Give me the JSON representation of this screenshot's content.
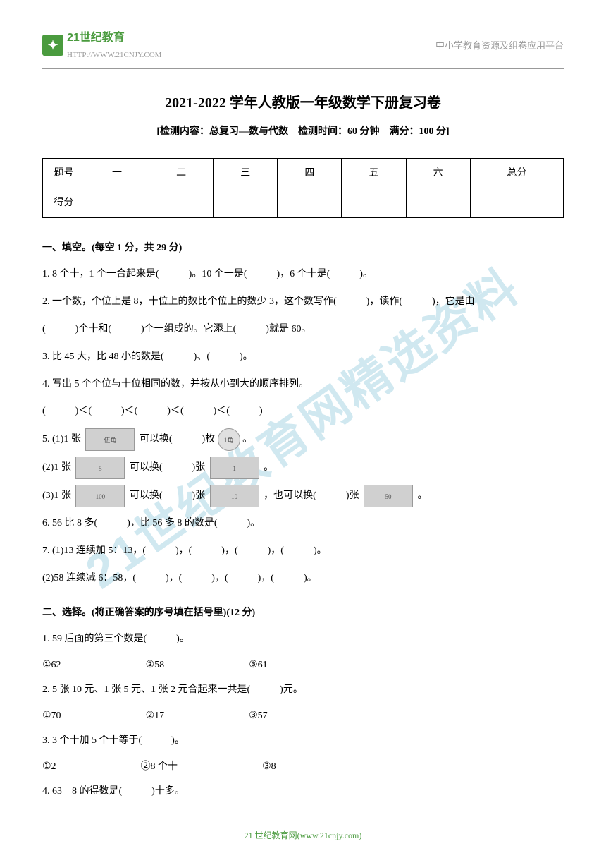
{
  "watermark": "21世纪教育网精选资料",
  "header": {
    "logo_text": "21世纪教育",
    "logo_url": "HTTP://WWW.21CNJY.COM",
    "right_text": "中小学教育资源及组卷应用平台"
  },
  "title": "2021-2022 学年人教版一年级数学下册复习卷",
  "subtitle": "[检测内容：总复习—数与代数　检测时间：60 分钟　满分：100 分]",
  "score_table": {
    "row1": [
      "题号",
      "一",
      "二",
      "三",
      "四",
      "五",
      "六",
      "总分"
    ],
    "row2_label": "得分"
  },
  "section1": {
    "title": "一、填空。(每空 1 分，共 29 分)",
    "q1": "1. 8 个十，1 个一合起来是(　　　)。10 个一是(　　　)，6 个十是(　　　)。",
    "q2": "2. 一个数，个位上是 8，十位上的数比个位上的数少 3，这个数写作(　　　)，读作(　　　)，它是由",
    "q2b": "(　　　)个十和(　　　)个一组成的。它添上(　　　)就是 60。",
    "q3": "3. 比 45 大，比 48 小的数是(　　　)、(　　　)。",
    "q4": "4. 写出 5 个个位与十位相同的数，并按从小到大的顺序排列。",
    "q4b": "(　　　)＜(　　　)＜(　　　)＜(　　　)＜(　　　)",
    "q5_1a": "5. (1)1 张",
    "q5_1b": "可以换(　　　)枚",
    "q5_1c": "。",
    "q5_2a": "(2)1 张",
    "q5_2b": "可以换(　　　)张",
    "q5_2c": "。",
    "q5_3a": "(3)1 张",
    "q5_3b": "可以换(　　　)张",
    "q5_3c": "，也可以换(　　　)张",
    "q5_3d": "。",
    "q6": "6. 56 比 8 多(　　　)，比 56 多 8 的数是(　　　)。",
    "q7_1": "7. (1)13 连续加 5：13，(　　　)，(　　　)，(　　　)，(　　　)。",
    "q7_2": "(2)58 连续减 6：58，(　　　)，(　　　)，(　　　)，(　　　)。",
    "money": {
      "wujiao": "伍角",
      "yijiao": "1角",
      "wuyuan": "5",
      "yiyuan": "1",
      "baiyuan": "100",
      "shiyuan": "10",
      "wushiyuan": "50"
    }
  },
  "section2": {
    "title": "二、选择。(将正确答案的序号填在括号里)(12 分)",
    "q1": "1. 59 后面的第三个数是(　　　)。",
    "q1_choices": [
      "①62",
      "②58",
      "③61"
    ],
    "q2": "2. 5 张 10 元、1 张 5 元、1 张 2 元合起来一共是(　　　)元。",
    "q2_choices": [
      "①70",
      "②17",
      "③57"
    ],
    "q3": "3. 3 个十加 5 个十等于(　　　)。",
    "q3_choices": [
      "①2",
      "②8 个十",
      "③8"
    ],
    "q4": "4. 63－8 的得数是(　　　)十多。"
  },
  "footer": "21 世纪教育网(www.21cnjy.com)"
}
